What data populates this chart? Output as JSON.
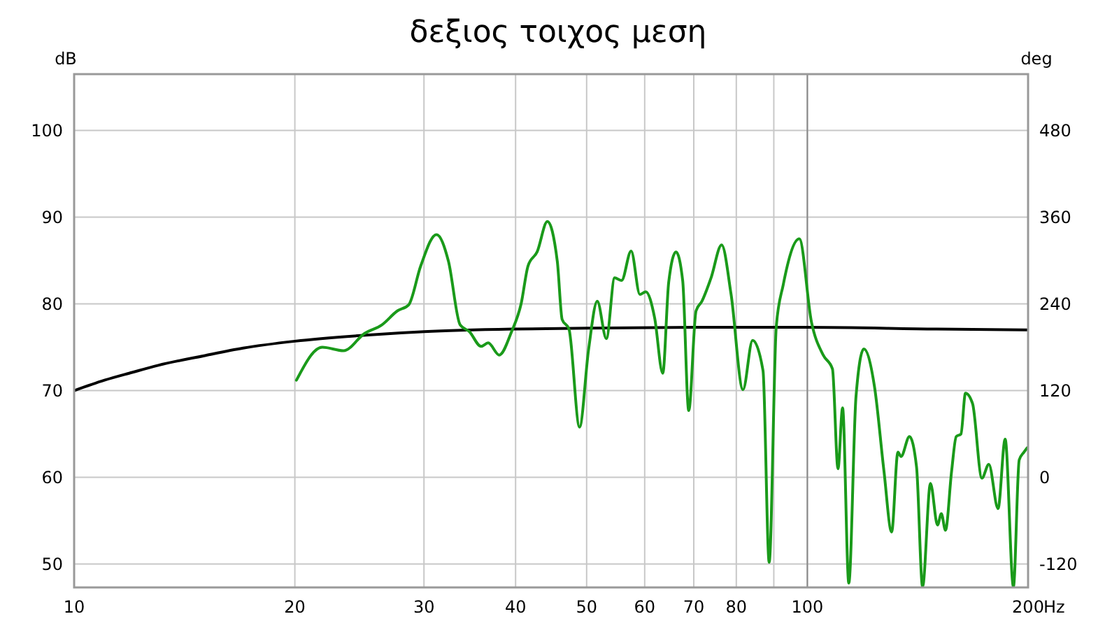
{
  "chart_data": {
    "type": "line",
    "title": "δεξιος τοιχος μεση",
    "xlabel": "Hz",
    "ylabel": "dB",
    "y2label": "deg",
    "log": "x",
    "xlim": [
      10,
      200
    ],
    "xticks": [
      10,
      20,
      30,
      40,
      50,
      60,
      70,
      80,
      {
        "value": 90,
        "label": null
      },
      100,
      200
    ],
    "ylim": [
      47.3,
      106.5
    ],
    "yticks": [
      50,
      60,
      70,
      80,
      90,
      100
    ],
    "y2lim": [
      -152.4,
      558
    ],
    "y2ticks": [
      -120,
      0,
      120,
      240,
      360,
      480
    ],
    "grid": true,
    "line_style": "solid",
    "marker": "none",
    "ref_lines": [
      {
        "axis": "x",
        "value": 100,
        "color": "#888888"
      }
    ],
    "series": [
      {
        "color": "#000000",
        "x": [
          10,
          11,
          12,
          13,
          15,
          17,
          20,
          25,
          30,
          40,
          50,
          70,
          100,
          150,
          200
        ],
        "values": [
          70,
          71.2,
          72.1,
          72.9,
          74.0,
          74.9,
          75.7,
          76.4,
          76.8,
          77.1,
          77.2,
          77.3,
          77.3,
          77.1,
          77.0
        ]
      },
      {
        "color": "#1a9a1a",
        "x": [
          20.1,
          21.8,
          23.3,
          24.9,
          26.3,
          27.6,
          28.6,
          29.7,
          31.2,
          32.4,
          33.6,
          34.6,
          35.9,
          36.7,
          38.0,
          39.5,
          40.7,
          41.6,
          42.8,
          44.2,
          45.6,
          46.3,
          47.3,
          48.9,
          50.3,
          51.7,
          53.2,
          54.6,
          55.8,
          57.5,
          59.1,
          60.2,
          61.9,
          63.5,
          64.7,
          66.2,
          67.6,
          68.9,
          70.5,
          71.8,
          73.9,
          76.4,
          78.7,
          81.7,
          84.2,
          87.0,
          88.7,
          90.7,
          92.7,
          97.5,
          101.3,
          105.1,
          108.2,
          110.1,
          111.7,
          113.9,
          116.5,
          119.4,
          123.5,
          127.2,
          130.3,
          132.9,
          134.2,
          137.8,
          140.9,
          143.6,
          147.2,
          150.5,
          152.3,
          154.3,
          157.3,
          159.6,
          162.0,
          164.3,
          168.0,
          173.0,
          176.8,
          182.0,
          186.1,
          191.0,
          194.5,
          197.4,
          199.4
        ],
        "values": [
          71.2,
          75.0,
          74.6,
          76.6,
          77.6,
          79.2,
          79.9,
          84.4,
          88.0,
          84.9,
          77.6,
          76.8,
          75.1,
          75.5,
          74.1,
          76.8,
          80.0,
          84.4,
          86.0,
          89.5,
          84.9,
          78.2,
          77.1,
          65.8,
          74.7,
          80.3,
          76.0,
          83.0,
          82.7,
          86.1,
          81.1,
          81.4,
          78.4,
          72.0,
          82.5,
          86.0,
          82.7,
          67.7,
          79.2,
          80.3,
          83.0,
          86.8,
          81.1,
          70.1,
          75.8,
          72.3,
          50.2,
          77.4,
          82.2,
          87.5,
          77.9,
          74.1,
          72.5,
          61.0,
          68.0,
          47.8,
          69.3,
          74.8,
          70.4,
          60.7,
          53.7,
          62.9,
          62.4,
          64.7,
          61.2,
          47.4,
          59.3,
          54.5,
          55.8,
          53.9,
          60.7,
          64.7,
          65.0,
          69.7,
          68.5,
          59.9,
          61.5,
          56.4,
          64.4,
          47.4,
          62.0,
          62.9,
          63.4
        ]
      }
    ]
  }
}
